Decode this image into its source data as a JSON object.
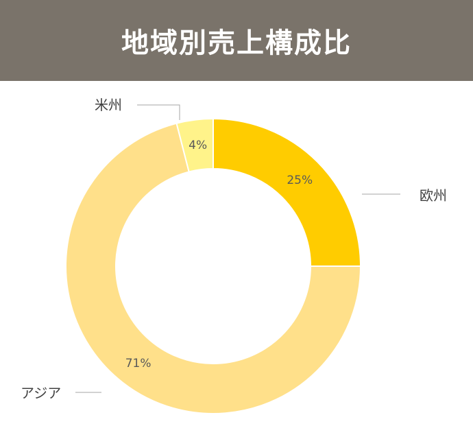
{
  "header": {
    "title": "地域別売上構成比"
  },
  "chart_data": {
    "type": "pie",
    "title": "地域別売上構成比",
    "slices": [
      {
        "label": "欧州",
        "value": 25,
        "pct_label": "25%",
        "color": "#ffcc00"
      },
      {
        "label": "アジア",
        "value": 71,
        "pct_label": "71%",
        "color": "#ffe08a"
      },
      {
        "label": "米州",
        "value": 4,
        "pct_label": "4%",
        "color": "#fff38a"
      }
    ],
    "donut": true,
    "legend": "none"
  }
}
